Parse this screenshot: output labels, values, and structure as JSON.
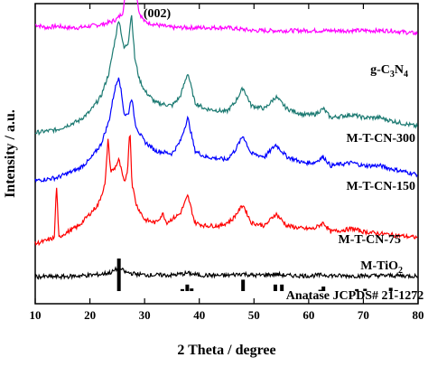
{
  "chart_data": {
    "type": "line",
    "xlabel": "2 Theta / degree",
    "ylabel": "Intensity / a.u.",
    "xlim": [
      10,
      80
    ],
    "xticks": [
      10,
      20,
      30,
      40,
      50,
      60,
      70,
      80
    ],
    "y_tick_labels": false,
    "grid": false,
    "peak_annotation": {
      "text": "(002)",
      "x": 27.6
    },
    "series": [
      {
        "name": "g-C3N4",
        "label_parts": [
          {
            "t": "g-C"
          },
          {
            "t": "3",
            "sub": true
          },
          {
            "t": "N"
          },
          {
            "t": "4",
            "sub": true
          }
        ],
        "color": "#ff00ff",
        "offset": 0.87,
        "x": [
          10,
          12,
          14,
          16,
          18,
          20,
          22,
          24,
          25,
          26,
          26.8,
          27.3,
          27.6,
          27.9,
          28.4,
          29,
          30,
          32,
          35,
          40,
          45,
          50,
          55,
          60,
          65,
          70,
          75,
          80
        ],
        "y": [
          0.06,
          0.05,
          0.055,
          0.05,
          0.05,
          0.055,
          0.06,
          0.07,
          0.08,
          0.1,
          0.2,
          0.42,
          0.55,
          0.42,
          0.18,
          0.1,
          0.07,
          0.06,
          0.05,
          0.05,
          0.05,
          0.04,
          0.04,
          0.04,
          0.04,
          0.04,
          0.04,
          0.03
        ]
      },
      {
        "name": "M-T-CN-300",
        "label_parts": [
          {
            "t": "M-T-CN-300"
          }
        ],
        "color": "#1c7a72",
        "offset": 0.57,
        "x": [
          10,
          14,
          18,
          20,
          22,
          23.5,
          24.5,
          25.3,
          26.2,
          27,
          27.6,
          28.2,
          29,
          30,
          32,
          35,
          36.5,
          37.9,
          39.2,
          41,
          45,
          46.5,
          48,
          49.5,
          52,
          54,
          56,
          59,
          61,
          62.7,
          64,
          68,
          70,
          73,
          75,
          80
        ],
        "y": [
          0,
          0.01,
          0.04,
          0.07,
          0.12,
          0.2,
          0.3,
          0.38,
          0.28,
          0.3,
          0.4,
          0.25,
          0.18,
          0.14,
          0.1,
          0.09,
          0.12,
          0.2,
          0.1,
          0.08,
          0.07,
          0.1,
          0.15,
          0.09,
          0.08,
          0.12,
          0.08,
          0.06,
          0.06,
          0.08,
          0.05,
          0.06,
          0.05,
          0.05,
          0.04,
          0.02
        ]
      },
      {
        "name": "M-T-CN-150",
        "label_parts": [
          {
            "t": "M-T-CN-150"
          }
        ],
        "color": "#0000ff",
        "offset": 0.41,
        "x": [
          10,
          14,
          18,
          20,
          22,
          23.5,
          24.5,
          25.3,
          26.3,
          27,
          27.6,
          28.3,
          29,
          30,
          32,
          35,
          36.5,
          37.9,
          39.2,
          41,
          45,
          46.5,
          48,
          49.5,
          52,
          54,
          56,
          59,
          61,
          62.7,
          64,
          68,
          70,
          73,
          75,
          80
        ],
        "y": [
          0,
          0.01,
          0.04,
          0.07,
          0.12,
          0.2,
          0.3,
          0.35,
          0.22,
          0.22,
          0.28,
          0.19,
          0.16,
          0.13,
          0.1,
          0.09,
          0.13,
          0.21,
          0.1,
          0.08,
          0.07,
          0.1,
          0.15,
          0.09,
          0.08,
          0.12,
          0.08,
          0.06,
          0.06,
          0.08,
          0.05,
          0.06,
          0.05,
          0.05,
          0.04,
          0.02
        ]
      },
      {
        "name": "M-T-CN-75",
        "label_parts": [
          {
            "t": "M-T-CN-75"
          }
        ],
        "color": "#ff0000",
        "offset": 0.2,
        "x": [
          10,
          12,
          13.5,
          13.9,
          14.3,
          15,
          18,
          20,
          21.5,
          22.8,
          23.3,
          23.8,
          24.5,
          25.3,
          26.3,
          26.9,
          27.3,
          27.7,
          28.5,
          30,
          32,
          33.4,
          34,
          36.5,
          37.9,
          39.2,
          41,
          44,
          46,
          48,
          49.5,
          52,
          54,
          56,
          59,
          61,
          62.7,
          64,
          68,
          70,
          75,
          80
        ],
        "y": [
          0,
          0.01,
          0.02,
          0.2,
          0.02,
          0.03,
          0.06,
          0.1,
          0.13,
          0.2,
          0.35,
          0.24,
          0.25,
          0.28,
          0.2,
          0.25,
          0.39,
          0.2,
          0.13,
          0.08,
          0.07,
          0.1,
          0.07,
          0.1,
          0.16,
          0.07,
          0.06,
          0.06,
          0.08,
          0.13,
          0.07,
          0.06,
          0.1,
          0.06,
          0.05,
          0.05,
          0.07,
          0.04,
          0.05,
          0.04,
          0.03,
          0.02
        ]
      },
      {
        "name": "M-TiO2",
        "label_parts": [
          {
            "t": "M-TiO"
          },
          {
            "t": "2",
            "sub": true
          }
        ],
        "color": "#000000",
        "offset": 0.09,
        "x": [
          10,
          15,
          20,
          22,
          24,
          25.3,
          26.5,
          28,
          30,
          35,
          37.9,
          40,
          45,
          48,
          50,
          54,
          56,
          60,
          62.7,
          65,
          70,
          75,
          80
        ],
        "y": [
          0,
          0,
          0.005,
          0.008,
          0.015,
          0.03,
          0.015,
          0.01,
          0.006,
          0.005,
          0.012,
          0.005,
          0.004,
          0.01,
          0.004,
          0.008,
          0.004,
          0.003,
          0.006,
          0.003,
          0.003,
          0.004,
          0.002
        ]
      }
    ],
    "reference": {
      "name": "Anatase JCPDS# 21-1272",
      "x": [
        25.3,
        36.9,
        37.8,
        38.6,
        48.0,
        53.9,
        55.1,
        62.1,
        62.7,
        68.8,
        70.3,
        75.0,
        76.0
      ],
      "y": [
        1.0,
        0.06,
        0.2,
        0.08,
        0.35,
        0.2,
        0.2,
        0.04,
        0.14,
        0.06,
        0.07,
        0.1,
        0.03
      ]
    }
  }
}
